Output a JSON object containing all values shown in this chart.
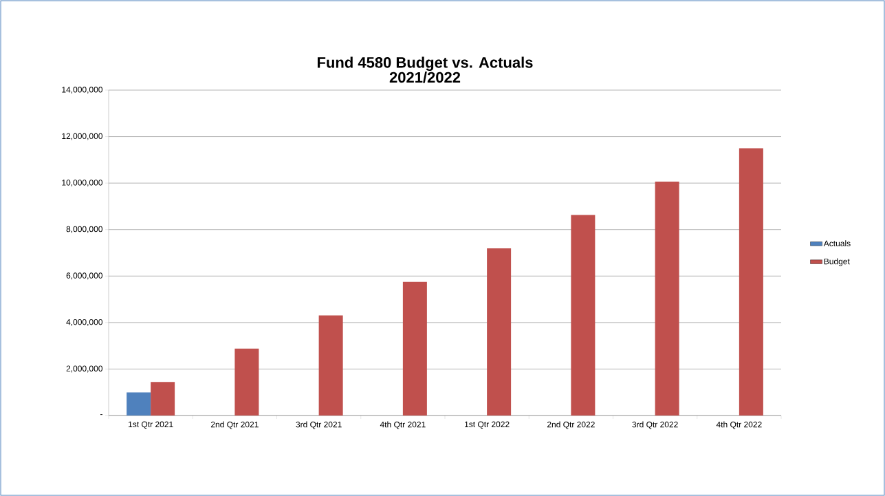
{
  "chart_data": {
    "type": "bar",
    "title": "Fund 4580 Budget vs. Actuals",
    "subtitle": "2021/2022",
    "categories": [
      "1st Qtr 2021",
      "2nd Qtr 2021",
      "3rd Qtr 2021",
      "4th Qtr 2021",
      "1st Qtr 2022",
      "2nd Qtr 2022",
      "3rd Qtr 2022",
      "4th Qtr 2022"
    ],
    "series": [
      {
        "name": "Actuals",
        "color": "#4f81bd",
        "values": [
          1000000,
          null,
          null,
          null,
          null,
          null,
          null,
          null
        ]
      },
      {
        "name": "Budget",
        "color": "#c0504d",
        "values": [
          1440000,
          2880000,
          4310000,
          5750000,
          7190000,
          8630000,
          10060000,
          11500000
        ]
      }
    ],
    "ylim": [
      0,
      14000000
    ],
    "yticks": [
      {
        "value": 0,
        "label": "-"
      },
      {
        "value": 2000000,
        "label": "2,000,000"
      },
      {
        "value": 4000000,
        "label": "4,000,000"
      },
      {
        "value": 6000000,
        "label": "6,000,000"
      },
      {
        "value": 8000000,
        "label": "8,000,000"
      },
      {
        "value": 10000000,
        "label": "10,000,000"
      },
      {
        "value": 12000000,
        "label": "12,000,000"
      },
      {
        "value": 14000000,
        "label": "14,000,000"
      }
    ],
    "grid": "y",
    "legend": "right"
  }
}
